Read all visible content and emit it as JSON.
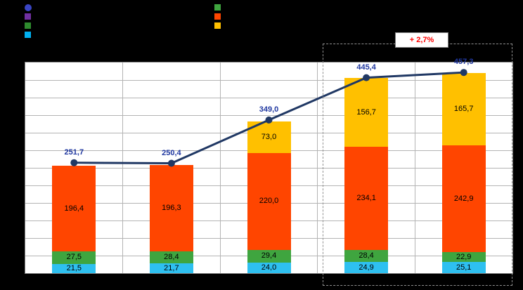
{
  "legend": {
    "columns": [
      {
        "items": [
          {
            "name": "total-line",
            "marker": "circle",
            "color": "#3a45c4",
            "label": ""
          },
          {
            "name": "series-purple",
            "marker": "square",
            "color": "#7030a0",
            "label": ""
          },
          {
            "name": "series-dark-green",
            "marker": "square",
            "color": "#2e8b2e",
            "label": ""
          },
          {
            "name": "series-cyan",
            "marker": "square",
            "color": "#00b0f0",
            "label": ""
          }
        ]
      },
      {
        "items": [
          {
            "name": "series-green",
            "marker": "square",
            "color": "#3fa53f",
            "label": ""
          },
          {
            "name": "series-orange",
            "marker": "square",
            "color": "#ff4500",
            "label": ""
          },
          {
            "name": "series-yellow",
            "marker": "square",
            "color": "#ffc000",
            "label": ""
          }
        ]
      }
    ]
  },
  "chart_data": {
    "type": "bar",
    "subtype": "stacked-bars-with-total-line",
    "categories": [
      "",
      "",
      "",
      "",
      ""
    ],
    "series": [
      {
        "name": "cyan-bottom",
        "color": "#2ec0f0",
        "values": [
          21.5,
          21.7,
          24.0,
          24.9,
          25.1
        ],
        "labels": [
          "21,5",
          "21,7",
          "24,0",
          "24,9",
          "25,1"
        ]
      },
      {
        "name": "green",
        "color": "#3fa53f",
        "values": [
          27.5,
          28.4,
          29.4,
          28.4,
          22.9
        ],
        "labels": [
          "27,5",
          "28,4",
          "29,4",
          "28,4",
          "22,9"
        ]
      },
      {
        "name": "orange",
        "color": "#ff4500",
        "values": [
          196.4,
          196.3,
          220.0,
          234.1,
          242.9
        ],
        "labels": [
          "196,4",
          "196,3",
          "220,0",
          "234,1",
          "242,9"
        ]
      },
      {
        "name": "yellow-top",
        "color": "#ffc000",
        "values": [
          0,
          0,
          73.0,
          156.7,
          165.7
        ],
        "labels": [
          "",
          "",
          "73,0",
          "156,7",
          "165,7"
        ]
      }
    ],
    "line": {
      "name": "total-line",
      "color": "#203864",
      "label_color": "#2038a0",
      "values": [
        251.7,
        250.4,
        349.0,
        445.4,
        457.3
      ],
      "labels": [
        "251,7",
        "250,4",
        "349,0",
        "445,4",
        "457,3"
      ]
    },
    "ylim": [
      0,
      480
    ],
    "grid_step": 40,
    "grid": true,
    "legend_position": "top-left",
    "annotation": {
      "text": "+ 2,7%",
      "color": "#ff0000",
      "applies_to_categories": [
        4,
        5
      ]
    }
  }
}
